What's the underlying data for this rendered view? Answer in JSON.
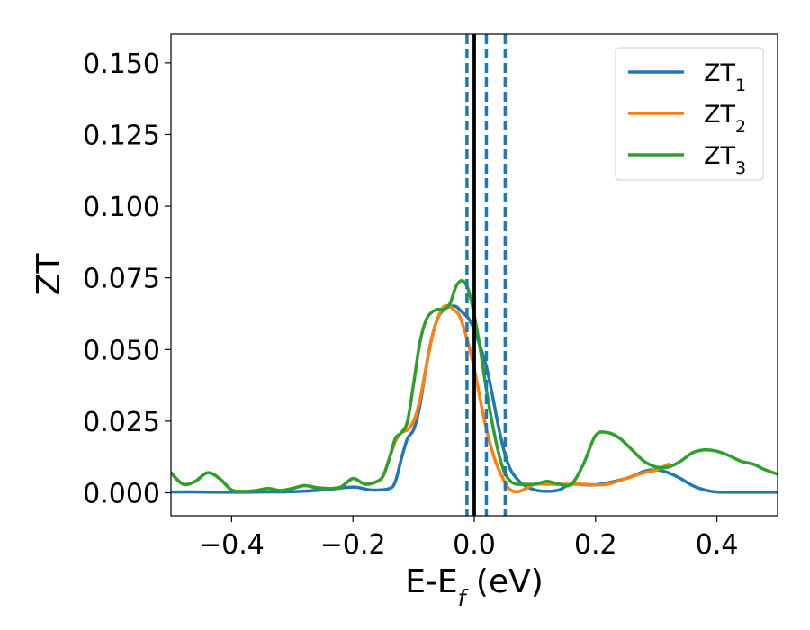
{
  "chart_data": {
    "type": "line",
    "title": "",
    "xlabel": {
      "main": "E-E",
      "sub": "f",
      "tail": " (eV)"
    },
    "ylabel": "ZT",
    "xlim": [
      -0.5,
      0.5
    ],
    "ylim": [
      -0.008,
      0.16
    ],
    "xticks": [
      {
        "value": -0.4,
        "label": "−0.4"
      },
      {
        "value": -0.2,
        "label": "−0.2"
      },
      {
        "value": 0.0,
        "label": "0.0"
      },
      {
        "value": 0.2,
        "label": "0.2"
      },
      {
        "value": 0.4,
        "label": "0.4"
      }
    ],
    "yticks": [
      {
        "value": 0.0,
        "label": "0.000"
      },
      {
        "value": 0.025,
        "label": "0.025"
      },
      {
        "value": 0.05,
        "label": "0.050"
      },
      {
        "value": 0.075,
        "label": "0.075"
      },
      {
        "value": 0.1,
        "label": "0.100"
      },
      {
        "value": 0.125,
        "label": "0.125"
      },
      {
        "value": 0.15,
        "label": "0.150"
      }
    ],
    "grid": false,
    "legend_position": "top-right",
    "vlines": [
      {
        "x": 0.0,
        "color": "#000000",
        "style": "solid"
      },
      {
        "x": -0.012,
        "color": "#1f77b4",
        "style": "dashed"
      },
      {
        "x": 0.02,
        "color": "#1f77b4",
        "style": "dashed"
      },
      {
        "x": 0.051,
        "color": "#1f77b4",
        "style": "dashed"
      }
    ],
    "series": [
      {
        "name": "ZT",
        "sub": "1",
        "color": "#1f77b4",
        "points": [
          [
            -0.5,
            0.0003
          ],
          [
            -0.45,
            0.0003
          ],
          [
            -0.4,
            0.0002
          ],
          [
            -0.35,
            0.0003
          ],
          [
            -0.3,
            0.0004
          ],
          [
            -0.25,
            0.001
          ],
          [
            -0.2,
            0.002
          ],
          [
            -0.17,
            0.001
          ],
          [
            -0.14,
            0.0015
          ],
          [
            -0.13,
            0.004
          ],
          [
            -0.12,
            0.012
          ],
          [
            -0.11,
            0.019
          ],
          [
            -0.1,
            0.022
          ],
          [
            -0.09,
            0.03
          ],
          [
            -0.08,
            0.043
          ],
          [
            -0.07,
            0.054
          ],
          [
            -0.06,
            0.061
          ],
          [
            -0.05,
            0.064
          ],
          [
            -0.04,
            0.065
          ],
          [
            -0.03,
            0.065
          ],
          [
            -0.02,
            0.063
          ],
          [
            -0.01,
            0.061
          ],
          [
            0.0,
            0.057
          ],
          [
            0.01,
            0.051
          ],
          [
            0.02,
            0.044
          ],
          [
            0.03,
            0.034
          ],
          [
            0.04,
            0.023
          ],
          [
            0.05,
            0.014
          ],
          [
            0.06,
            0.008
          ],
          [
            0.07,
            0.005
          ],
          [
            0.08,
            0.003
          ],
          [
            0.1,
            0.001
          ],
          [
            0.12,
            0.0005
          ],
          [
            0.14,
            0.001
          ],
          [
            0.16,
            0.003
          ],
          [
            0.2,
            0.0028
          ],
          [
            0.25,
            0.005
          ],
          [
            0.28,
            0.0075
          ],
          [
            0.3,
            0.008
          ],
          [
            0.32,
            0.007
          ],
          [
            0.34,
            0.005
          ],
          [
            0.36,
            0.0025
          ],
          [
            0.38,
            0.001
          ],
          [
            0.4,
            0.0003
          ],
          [
            0.45,
            0.0002
          ],
          [
            0.5,
            0.0002
          ]
        ]
      },
      {
        "name": "ZT",
        "sub": "2",
        "color": "#ff7f0e",
        "points": [
          [
            -0.5,
            0.007
          ],
          [
            -0.48,
            0.003
          ],
          [
            -0.46,
            0.004
          ],
          [
            -0.44,
            0.007
          ],
          [
            -0.42,
            0.005
          ],
          [
            -0.4,
            0.001
          ],
          [
            -0.38,
            0.0005
          ],
          [
            -0.36,
            0.0008
          ],
          [
            -0.34,
            0.0015
          ],
          [
            -0.32,
            0.0008
          ],
          [
            -0.3,
            0.0015
          ],
          [
            -0.28,
            0.0025
          ],
          [
            -0.26,
            0.0018
          ],
          [
            -0.24,
            0.0015
          ],
          [
            -0.22,
            0.002
          ],
          [
            -0.2,
            0.005
          ],
          [
            -0.18,
            0.003
          ],
          [
            -0.16,
            0.004
          ],
          [
            -0.15,
            0.006
          ],
          [
            -0.14,
            0.012
          ],
          [
            -0.13,
            0.018
          ],
          [
            -0.12,
            0.021
          ],
          [
            -0.11,
            0.022
          ],
          [
            -0.1,
            0.025
          ],
          [
            -0.09,
            0.032
          ],
          [
            -0.08,
            0.043
          ],
          [
            -0.07,
            0.054
          ],
          [
            -0.06,
            0.061
          ],
          [
            -0.05,
            0.065
          ],
          [
            -0.04,
            0.065
          ],
          [
            -0.035,
            0.064
          ],
          [
            -0.025,
            0.062
          ],
          [
            -0.015,
            0.056
          ],
          [
            -0.005,
            0.048
          ],
          [
            0.005,
            0.038
          ],
          [
            0.015,
            0.027
          ],
          [
            0.025,
            0.018
          ],
          [
            0.035,
            0.011
          ],
          [
            0.045,
            0.006
          ],
          [
            0.055,
            0.002
          ],
          [
            0.065,
            0.0005
          ],
          [
            0.075,
            0.0005
          ],
          [
            0.085,
            0.0015
          ],
          [
            0.1,
            0.003
          ],
          [
            0.12,
            0.003
          ],
          [
            0.15,
            0.003
          ],
          [
            0.18,
            0.003
          ],
          [
            0.2,
            0.0028
          ],
          [
            0.22,
            0.003
          ],
          [
            0.25,
            0.005
          ],
          [
            0.28,
            0.007
          ],
          [
            0.3,
            0.008
          ],
          [
            0.32,
            0.01
          ]
        ]
      },
      {
        "name": "ZT",
        "sub": "3",
        "color": "#2ca02c",
        "points": [
          [
            -0.5,
            0.007
          ],
          [
            -0.48,
            0.003
          ],
          [
            -0.46,
            0.004
          ],
          [
            -0.44,
            0.007
          ],
          [
            -0.42,
            0.005
          ],
          [
            -0.4,
            0.001
          ],
          [
            -0.38,
            0.0005
          ],
          [
            -0.36,
            0.0008
          ],
          [
            -0.34,
            0.0015
          ],
          [
            -0.32,
            0.0008
          ],
          [
            -0.3,
            0.0015
          ],
          [
            -0.28,
            0.0025
          ],
          [
            -0.26,
            0.0018
          ],
          [
            -0.24,
            0.0015
          ],
          [
            -0.22,
            0.002
          ],
          [
            -0.2,
            0.005
          ],
          [
            -0.18,
            0.003
          ],
          [
            -0.16,
            0.004
          ],
          [
            -0.15,
            0.006
          ],
          [
            -0.14,
            0.012
          ],
          [
            -0.13,
            0.019
          ],
          [
            -0.12,
            0.021
          ],
          [
            -0.11,
            0.025
          ],
          [
            -0.1,
            0.038
          ],
          [
            -0.09,
            0.052
          ],
          [
            -0.08,
            0.06
          ],
          [
            -0.07,
            0.063
          ],
          [
            -0.06,
            0.064
          ],
          [
            -0.05,
            0.064
          ],
          [
            -0.04,
            0.066
          ],
          [
            -0.03,
            0.072
          ],
          [
            -0.02,
            0.074
          ],
          [
            -0.01,
            0.071
          ],
          [
            0.0,
            0.062
          ],
          [
            0.01,
            0.05
          ],
          [
            0.02,
            0.036
          ],
          [
            0.03,
            0.024
          ],
          [
            0.04,
            0.014
          ],
          [
            0.05,
            0.007
          ],
          [
            0.06,
            0.004
          ],
          [
            0.07,
            0.003
          ],
          [
            0.08,
            0.003
          ],
          [
            0.1,
            0.003
          ],
          [
            0.12,
            0.004
          ],
          [
            0.14,
            0.003
          ],
          [
            0.16,
            0.003
          ],
          [
            0.18,
            0.01
          ],
          [
            0.2,
            0.02
          ],
          [
            0.22,
            0.021
          ],
          [
            0.24,
            0.019
          ],
          [
            0.26,
            0.015
          ],
          [
            0.28,
            0.011
          ],
          [
            0.3,
            0.009
          ],
          [
            0.32,
            0.009
          ],
          [
            0.34,
            0.011
          ],
          [
            0.36,
            0.014
          ],
          [
            0.38,
            0.015
          ],
          [
            0.4,
            0.0145
          ],
          [
            0.42,
            0.013
          ],
          [
            0.44,
            0.011
          ],
          [
            0.46,
            0.01
          ],
          [
            0.48,
            0.008
          ],
          [
            0.5,
            0.0065
          ]
        ]
      }
    ]
  }
}
